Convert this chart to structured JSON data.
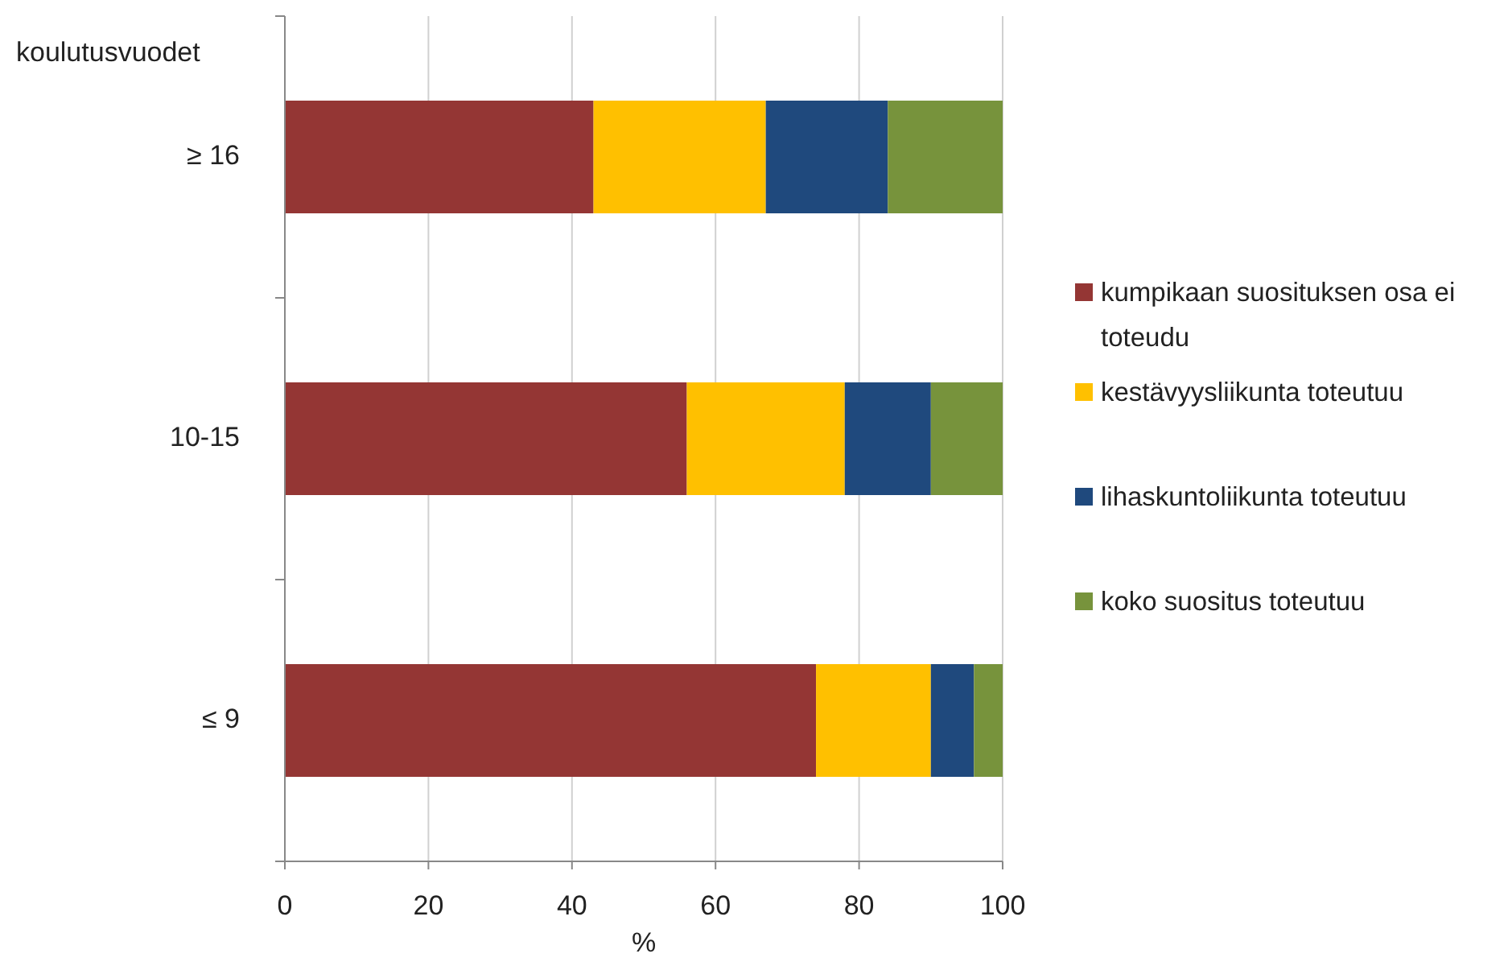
{
  "chart_data": {
    "type": "bar",
    "orientation": "horizontal",
    "stacked": true,
    "ylabel": "koulutusvuodet",
    "xlabel": "%",
    "categories": [
      "≥ 16",
      "10-15",
      "≤ 9"
    ],
    "series": [
      {
        "name": "kumpikaan suosituksen osa ei toteudu",
        "color": "#943634",
        "values": [
          43,
          56,
          74
        ]
      },
      {
        "name": "kestävyysliikunta toteutuu",
        "color": "#ffc000",
        "values": [
          24,
          22,
          16
        ]
      },
      {
        "name": "lihaskuntoliikunta toteutuu",
        "color": "#1f497d",
        "values": [
          17,
          12,
          6
        ]
      },
      {
        "name": "koko suositus toteutuu",
        "color": "#77933c",
        "values": [
          16,
          10,
          4
        ]
      }
    ],
    "xlim": [
      0,
      100
    ],
    "xticks": [
      0,
      20,
      40,
      60,
      80,
      100
    ],
    "grid": "x",
    "legend": "right"
  }
}
